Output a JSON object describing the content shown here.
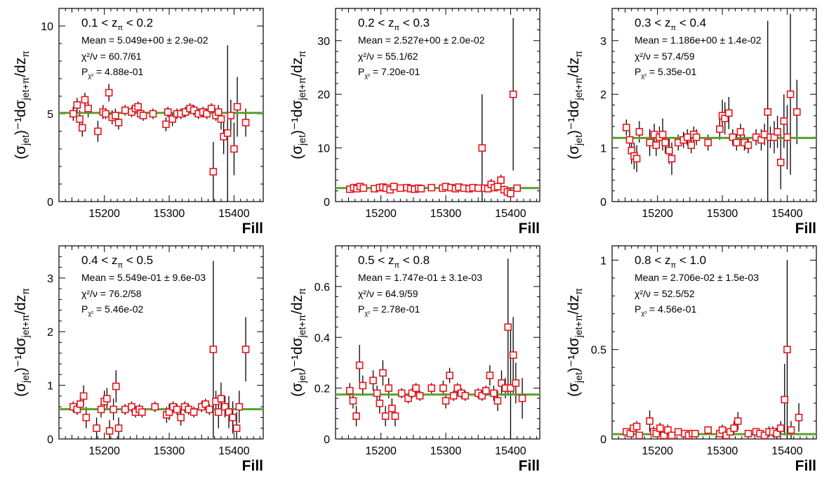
{
  "colors": {
    "marker": "#e8141c",
    "fit": "#5aa02c",
    "errbar": "#000000",
    "frame": "#000000"
  },
  "chart_data": [
    {
      "type": "scatter",
      "title": "0.1 < z_π < 0.2",
      "title_parts": {
        "left": "0.1 < z",
        "sub": "π",
        "right": " < 0.2"
      },
      "stats": {
        "mean": "Mean = 5.049e+00 ± 2.9e-02",
        "chi2": "χ²/ν = 60.7/61",
        "p_label": "P",
        "p_sub": "χ²",
        "p_value": " = 4.88e-01"
      },
      "xlabel": "Fill",
      "ylabel": {
        "main": "(σ",
        "s1": "jet",
        "mid": ")⁻¹dσ",
        "s2": "jet+π",
        "end": "/dz",
        "s3": "π"
      },
      "xlim": [
        15130,
        15445
      ],
      "ylim": [
        0,
        11
      ],
      "xticks": [
        15200,
        15300,
        15400
      ],
      "yticks": [
        0,
        5,
        10
      ],
      "fit": 5.049,
      "x": [
        15152,
        15158,
        15162,
        15166,
        15170,
        15175,
        15190,
        15198,
        15202,
        15207,
        15212,
        15217,
        15222,
        15232,
        15242,
        15248,
        15252,
        15256,
        15260,
        15275,
        15295,
        15298,
        15305,
        15312,
        15318,
        15325,
        15332,
        15338,
        15345,
        15352,
        15358,
        15365,
        15368,
        15372,
        15376,
        15380,
        15384,
        15390,
        15395,
        15400,
        15405,
        15418
      ],
      "y": [
        5.0,
        5.5,
        4.7,
        4.2,
        5.8,
        5.3,
        4.0,
        5.1,
        5.0,
        6.2,
        4.8,
        4.9,
        4.5,
        5.2,
        5.1,
        5.3,
        5.4,
        5.0,
        4.9,
        5.0,
        4.4,
        5.1,
        4.7,
        5.0,
        5.0,
        5.1,
        5.3,
        5.2,
        5.0,
        5.1,
        5.0,
        5.3,
        1.7,
        4.9,
        5.1,
        4.7,
        3.7,
        3.9,
        4.9,
        3.0,
        5.4,
        4.5
      ],
      "err": [
        0.4,
        0.4,
        0.5,
        0.5,
        0.4,
        0.5,
        0.6,
        0.4,
        0.3,
        0.5,
        0.4,
        0.4,
        0.4,
        0.3,
        0.3,
        0.3,
        0.3,
        0.3,
        0.3,
        0.3,
        0.4,
        0.3,
        0.4,
        0.3,
        0.3,
        0.3,
        0.3,
        0.3,
        0.3,
        0.3,
        0.3,
        0.3,
        1.7,
        0.3,
        0.4,
        0.6,
        1.0,
        5.0,
        0.9,
        1.5,
        1.7,
        0.8
      ]
    },
    {
      "type": "scatter",
      "title": "0.2 < z_π < 0.3",
      "title_parts": {
        "left": "0.2 < z",
        "sub": "π",
        "right": " < 0.3"
      },
      "stats": {
        "mean": "Mean = 2.527e+00 ± 2.0e-02",
        "chi2": "χ²/ν = 55.1/62",
        "p_label": "P",
        "p_sub": "χ²",
        "p_value": " = 7.20e-01"
      },
      "xlabel": "Fill",
      "ylabel": {
        "main": "(σ",
        "s1": "jet",
        "mid": ")⁻¹dσ",
        "s2": "jet+π",
        "end": "/dz",
        "s3": "π"
      },
      "xlim": [
        15130,
        15445
      ],
      "ylim": [
        0,
        36
      ],
      "xticks": [
        15200,
        15300,
        15400
      ],
      "yticks": [
        0,
        10,
        20,
        30
      ],
      "fit": 2.527,
      "x": [
        15152,
        15158,
        15163,
        15168,
        15173,
        15190,
        15198,
        15203,
        15208,
        15214,
        15220,
        15230,
        15240,
        15246,
        15252,
        15258,
        15262,
        15278,
        15295,
        15300,
        15308,
        15315,
        15320,
        15328,
        15336,
        15342,
        15350,
        15356,
        15360,
        15365,
        15370,
        15375,
        15380,
        15385,
        15390,
        15395,
        15400,
        15404,
        15410
      ],
      "y": [
        2.3,
        2.6,
        2.4,
        2.8,
        2.5,
        2.4,
        2.6,
        2.7,
        2.5,
        2.2,
        2.8,
        2.5,
        2.6,
        2.4,
        2.3,
        2.5,
        2.4,
        2.6,
        2.5,
        2.8,
        2.6,
        2.4,
        2.7,
        2.5,
        2.4,
        2.6,
        2.5,
        10.0,
        2.5,
        2.4,
        3.2,
        2.6,
        2.8,
        4.0,
        2.2,
        1.8,
        1.5,
        20.0,
        2.5
      ],
      "err": [
        0.4,
        0.4,
        0.4,
        0.4,
        0.4,
        0.4,
        0.4,
        0.4,
        0.4,
        0.4,
        0.4,
        0.3,
        0.3,
        0.3,
        0.3,
        0.3,
        0.3,
        0.3,
        0.3,
        0.3,
        0.3,
        0.3,
        0.3,
        0.3,
        0.3,
        0.3,
        0.3,
        10.0,
        0.4,
        0.4,
        1.0,
        0.6,
        0.7,
        1.0,
        0.8,
        0.8,
        0.8,
        14.2,
        0.6
      ]
    },
    {
      "type": "scatter",
      "title": "0.3 < z_π < 0.4",
      "title_parts": {
        "left": "0.3 < z",
        "sub": "π",
        "right": " < 0.4"
      },
      "stats": {
        "mean": "Mean = 1.186e+00 ± 1.4e-02",
        "chi2": "χ²/ν = 57.4/59",
        "p_label": "P",
        "p_sub": "χ²",
        "p_value": " = 5.35e-01"
      },
      "xlabel": "Fill",
      "ylabel": {
        "main": "(σ",
        "s1": "jet",
        "mid": ")⁻¹dσ",
        "s2": "jet+π",
        "end": "/dz",
        "s3": "π"
      },
      "xlim": [
        15130,
        15445
      ],
      "ylim": [
        0,
        3.6
      ],
      "xticks": [
        15200,
        15300,
        15400
      ],
      "yticks": [
        0,
        1,
        2,
        3
      ],
      "fit": 1.186,
      "x": [
        15152,
        15157,
        15160,
        15164,
        15168,
        15172,
        15188,
        15195,
        15198,
        15203,
        15208,
        15212,
        15218,
        15222,
        15232,
        15240,
        15246,
        15252,
        15256,
        15260,
        15278,
        15296,
        15300,
        15304,
        15310,
        15316,
        15322,
        15328,
        15334,
        15340,
        15352,
        15360,
        15365,
        15370,
        15374,
        15380,
        15385,
        15390,
        15395,
        15400,
        15405,
        15415
      ],
      "y": [
        1.38,
        1.15,
        0.95,
        0.85,
        0.8,
        1.3,
        1.1,
        1.25,
        1.05,
        1.2,
        1.25,
        1.1,
        0.95,
        0.8,
        1.1,
        1.15,
        1.2,
        1.05,
        1.25,
        1.2,
        1.1,
        1.35,
        1.6,
        1.55,
        1.65,
        1.2,
        1.1,
        1.3,
        1.1,
        1.05,
        1.2,
        1.15,
        1.25,
        1.67,
        1.2,
        1.2,
        1.3,
        0.73,
        1.5,
        1.2,
        2.0,
        1.67
      ],
      "err": [
        0.15,
        0.2,
        0.25,
        0.25,
        0.25,
        0.2,
        0.25,
        0.2,
        0.2,
        0.2,
        0.3,
        0.2,
        0.25,
        0.3,
        0.15,
        0.15,
        0.15,
        0.15,
        0.15,
        0.15,
        0.15,
        0.2,
        0.3,
        0.3,
        0.3,
        0.15,
        0.15,
        0.15,
        0.15,
        0.15,
        0.15,
        0.2,
        0.2,
        1.7,
        0.2,
        0.3,
        0.3,
        0.5,
        0.5,
        0.6,
        1.5,
        0.6
      ]
    },
    {
      "type": "scatter",
      "title": "0.4 < z_π < 0.5",
      "title_parts": {
        "left": "0.4 < z",
        "sub": "π",
        "right": " < 0.5"
      },
      "stats": {
        "mean": "Mean = 5.549e-01 ± 9.6e-03",
        "chi2": "χ²/ν = 76.2/58",
        "p_label": "P",
        "p_sub": "χ²",
        "p_value": " = 5.46e-02"
      },
      "xlabel": "Fill",
      "ylabel": {
        "main": "(σ",
        "s1": "jet",
        "mid": ")⁻¹dσ",
        "s2": "jet+π",
        "end": "/dz",
        "s3": "π"
      },
      "xlim": [
        15130,
        15445
      ],
      "ylim": [
        0,
        3.6
      ],
      "xticks": [
        15200,
        15300,
        15400
      ],
      "yticks": [
        0,
        1,
        2,
        3
      ],
      "fit": 0.5549,
      "x": [
        15152,
        15158,
        15163,
        15168,
        15172,
        15188,
        15195,
        15200,
        15204,
        15208,
        15214,
        15218,
        15222,
        15232,
        15242,
        15248,
        15254,
        15258,
        15278,
        15296,
        15300,
        15306,
        15312,
        15318,
        15324,
        15330,
        15338,
        15350,
        15356,
        15362,
        15368,
        15372,
        15376,
        15380,
        15386,
        15392,
        15398,
        15404,
        15408,
        15418
      ],
      "y": [
        0.6,
        0.55,
        0.65,
        0.8,
        0.4,
        0.2,
        0.55,
        0.7,
        0.75,
        0.15,
        0.55,
        0.98,
        0.2,
        0.55,
        0.6,
        0.5,
        0.55,
        0.5,
        0.6,
        0.45,
        0.5,
        0.6,
        0.55,
        0.4,
        0.6,
        0.55,
        0.5,
        0.6,
        0.65,
        0.55,
        1.67,
        0.7,
        0.5,
        0.75,
        0.6,
        0.5,
        0.4,
        0.2,
        0.6,
        1.67
      ],
      "err": [
        0.1,
        0.1,
        0.15,
        0.2,
        0.2,
        0.2,
        0.15,
        0.2,
        0.2,
        0.2,
        0.2,
        0.3,
        0.2,
        0.1,
        0.1,
        0.1,
        0.1,
        0.1,
        0.1,
        0.15,
        0.15,
        0.1,
        0.1,
        0.15,
        0.1,
        0.1,
        0.1,
        0.1,
        0.1,
        0.1,
        1.65,
        0.2,
        0.3,
        0.3,
        0.2,
        0.3,
        0.3,
        0.3,
        0.3,
        0.6
      ]
    },
    {
      "type": "scatter",
      "title": "0.5 < z_π < 0.8",
      "title_parts": {
        "left": "0.5 < z",
        "sub": "π",
        "right": " < 0.8"
      },
      "stats": {
        "mean": "Mean = 1.747e-01 ± 3.1e-03",
        "chi2": "χ²/ν = 64.9/59",
        "p_label": "P",
        "p_sub": "χ²",
        "p_value": " = 2.78e-01"
      },
      "xlabel": "Fill",
      "ylabel": {
        "main": "(σ",
        "s1": "jet",
        "mid": ")⁻¹dσ",
        "s2": "jet+π",
        "end": "/dz",
        "s3": "π"
      },
      "xlim": [
        15130,
        15445
      ],
      "ylim": [
        0,
        0.76
      ],
      "xticks": [
        15200,
        15300,
        15400
      ],
      "yticks": [
        0,
        0.2,
        0.4,
        0.6
      ],
      "fit": 0.1747,
      "x": [
        15152,
        15157,
        15162,
        15167,
        15172,
        15188,
        15194,
        15198,
        15203,
        15207,
        15212,
        15217,
        15222,
        15232,
        15242,
        15248,
        15254,
        15260,
        15278,
        15296,
        15300,
        15306,
        15312,
        15318,
        15324,
        15330,
        15350,
        15356,
        15362,
        15368,
        15374,
        15380,
        15386,
        15392,
        15396,
        15400,
        15404,
        15408,
        15418
      ],
      "y": [
        0.19,
        0.15,
        0.09,
        0.29,
        0.21,
        0.23,
        0.18,
        0.14,
        0.26,
        0.09,
        0.2,
        0.12,
        0.09,
        0.18,
        0.16,
        0.18,
        0.2,
        0.17,
        0.2,
        0.2,
        0.15,
        0.25,
        0.17,
        0.2,
        0.18,
        0.17,
        0.18,
        0.17,
        0.19,
        0.25,
        0.18,
        0.15,
        0.22,
        0.2,
        0.44,
        0.2,
        0.33,
        0.22,
        0.16
      ],
      "err": [
        0.03,
        0.03,
        0.04,
        0.08,
        0.04,
        0.04,
        0.03,
        0.04,
        0.05,
        0.04,
        0.04,
        0.04,
        0.04,
        0.02,
        0.02,
        0.02,
        0.02,
        0.02,
        0.02,
        0.03,
        0.03,
        0.03,
        0.02,
        0.02,
        0.02,
        0.02,
        0.02,
        0.02,
        0.02,
        0.04,
        0.03,
        0.04,
        0.05,
        0.04,
        0.27,
        0.25,
        0.15,
        0.08,
        0.08
      ]
    },
    {
      "type": "scatter",
      "title": "0.8 < z_π < 1.0",
      "title_parts": {
        "left": "0.8 < z",
        "sub": "π",
        "right": " < 1.0"
      },
      "stats": {
        "mean": "Mean = 2.706e-02 ± 1.5e-03",
        "chi2": "χ²/ν = 52.5/52",
        "p_label": "P",
        "p_sub": "χ²",
        "p_value": " = 4.56e-01"
      },
      "xlabel": "Fill",
      "ylabel": {
        "main": "(σ",
        "s1": "jet",
        "mid": ")⁻¹dσ",
        "s2": "jet+π",
        "end": "/dz",
        "s3": "π"
      },
      "xlim": [
        15130,
        15445
      ],
      "ylim": [
        0,
        1.08
      ],
      "xticks": [
        15200,
        15300,
        15400
      ],
      "yticks": [
        0,
        0.5,
        1
      ],
      "fit": 0.02706,
      "x": [
        15152,
        15158,
        15163,
        15168,
        15172,
        15188,
        15194,
        15198,
        15204,
        15210,
        15216,
        15222,
        15232,
        15242,
        15248,
        15254,
        15258,
        15278,
        15296,
        15300,
        15306,
        15312,
        15318,
        15324,
        15340,
        15352,
        15358,
        15365,
        15372,
        15378,
        15384,
        15390,
        15396,
        15400,
        15406,
        15418
      ],
      "y": [
        0.04,
        0.03,
        0.06,
        0.07,
        0.02,
        0.1,
        0.04,
        0.03,
        0.06,
        0.02,
        0.05,
        0.02,
        0.04,
        0.03,
        0.02,
        0.03,
        0.03,
        0.05,
        0.03,
        0.05,
        0.02,
        0.04,
        0.06,
        0.1,
        0.03,
        0.04,
        0.03,
        0.02,
        0.04,
        0.04,
        0.03,
        0.06,
        0.22,
        0.5,
        0.05,
        0.12
      ],
      "err": [
        0.02,
        0.02,
        0.03,
        0.03,
        0.02,
        0.06,
        0.03,
        0.02,
        0.03,
        0.02,
        0.03,
        0.02,
        0.01,
        0.01,
        0.01,
        0.01,
        0.01,
        0.02,
        0.02,
        0.03,
        0.02,
        0.02,
        0.04,
        0.05,
        0.02,
        0.02,
        0.02,
        0.02,
        0.03,
        0.03,
        0.03,
        0.04,
        0.2,
        0.5,
        0.05,
        0.08
      ]
    }
  ]
}
